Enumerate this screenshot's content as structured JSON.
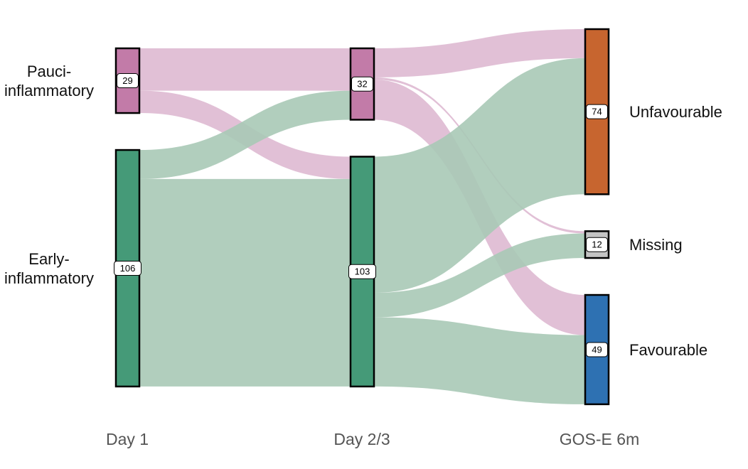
{
  "chart_data": {
    "type": "sankey",
    "title": "",
    "columns": [
      "Day 1",
      "Day 2/3",
      "GOS-E 6m"
    ],
    "nodes": [
      {
        "id": "d1_pauci",
        "column": 0,
        "label_lines": [
          "Pauci-",
          "inflammatory"
        ],
        "count": "29",
        "value": 29,
        "color": "#c27ba8"
      },
      {
        "id": "d1_early",
        "column": 0,
        "label_lines": [
          "Early-",
          "inflammatory"
        ],
        "count": "106",
        "value": 106,
        "color": "#459a78"
      },
      {
        "id": "d23_pauci",
        "column": 1,
        "label_lines": [],
        "count": "32",
        "value": 32,
        "color": "#c27ba8"
      },
      {
        "id": "d23_early",
        "column": 1,
        "label_lines": [],
        "count": "103",
        "value": 103,
        "color": "#459a78"
      },
      {
        "id": "unfav",
        "column": 2,
        "label_lines": [
          "Unfavourable"
        ],
        "count": "74",
        "value": 74,
        "color": "#c7652f"
      },
      {
        "id": "missing",
        "column": 2,
        "label_lines": [
          "Missing"
        ],
        "count": "12",
        "value": 12,
        "color": "#c4c4c4"
      },
      {
        "id": "fav",
        "column": 2,
        "label_lines": [
          "Favourable"
        ],
        "count": "49",
        "value": 49,
        "color": "#2e71b2"
      }
    ],
    "links": [
      {
        "source": "d1_pauci",
        "target": "d23_pauci",
        "value": 19
      },
      {
        "source": "d1_pauci",
        "target": "d23_early",
        "value": 10
      },
      {
        "source": "d1_early",
        "target": "d23_pauci",
        "value": 13
      },
      {
        "source": "d1_early",
        "target": "d23_early",
        "value": 93
      },
      {
        "source": "d23_pauci",
        "target": "unfav",
        "value": 13
      },
      {
        "source": "d23_pauci",
        "target": "missing",
        "value": 1
      },
      {
        "source": "d23_pauci",
        "target": "fav",
        "value": 18
      },
      {
        "source": "d23_early",
        "target": "unfav",
        "value": 61
      },
      {
        "source": "d23_early",
        "target": "missing",
        "value": 11
      },
      {
        "source": "d23_early",
        "target": "fav",
        "value": 31
      }
    ],
    "link_colors": {
      "pauci": "#deb9d1",
      "early": "#a9c9b6"
    }
  }
}
